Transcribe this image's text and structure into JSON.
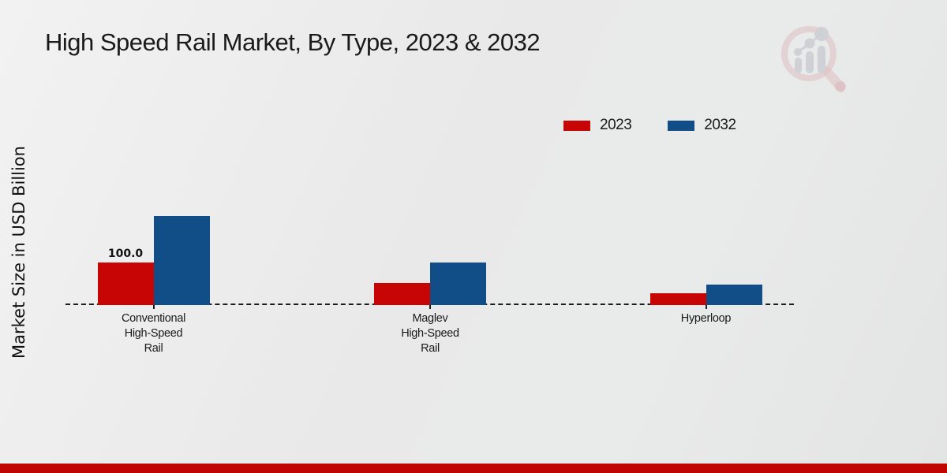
{
  "page": {
    "title": "High Speed Rail Market, By Type, 2023 & 2032",
    "y_axis_label": "Market Size in USD Billion",
    "watermark_icon": "magnifier-bar-chart-logo"
  },
  "chart_data": {
    "type": "bar",
    "title": "High Speed Rail Market, By Type, 2023 & 2032",
    "ylabel": "Market Size in USD Billion",
    "categories": [
      "Conventional High-Speed Rail",
      "Maglev High-Speed Rail",
      "Hyperloop"
    ],
    "category_lines": [
      [
        "Conventional",
        "High-Speed",
        "Rail"
      ],
      [
        "Maglev",
        "High-Speed",
        "Rail"
      ],
      [
        "Hyperloop"
      ]
    ],
    "series": [
      {
        "name": "2023",
        "color": "#c80505",
        "values": [
          100.0,
          51.0,
          28.0
        ],
        "data_labels": [
          "100.0",
          null,
          null
        ]
      },
      {
        "name": "2032",
        "color": "#114e87",
        "values": [
          211.0,
          101.0,
          48.0
        ],
        "data_labels": [
          null,
          null,
          null
        ]
      }
    ],
    "ylim": [
      0,
      230
    ],
    "baseline_style": "dashed",
    "grid": false,
    "legend_position": "top-right",
    "x_tick_labels_visible": true,
    "y_tick_labels_visible": false
  },
  "colors": {
    "series_2023": "#c80505",
    "series_2032": "#114e87",
    "title_text": "#1a1a1a",
    "baseline": "#1c1c1c",
    "background_light": "#efefef",
    "background_dark": "#e3e4e4",
    "footer_bar": "#c00503",
    "watermark_pink": "#d2949a",
    "watermark_gray": "#b6bac2"
  },
  "footer": {
    "bar_color": "#c00503"
  }
}
